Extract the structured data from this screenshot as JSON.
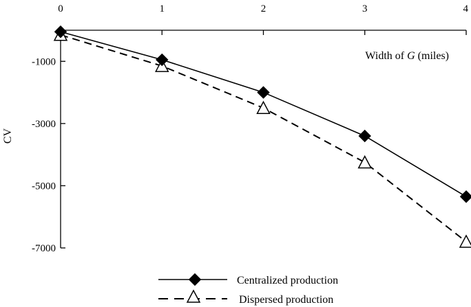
{
  "chart_data": {
    "type": "line",
    "xlabel_pre": "Width of ",
    "xlabel_var": "G",
    "xlabel_post": " (miles)",
    "ylabel": "CV",
    "x": [
      0,
      1,
      2,
      3,
      4
    ],
    "xlim": [
      0,
      4
    ],
    "ylim": [
      0,
      -7000
    ],
    "x_ticks": [
      "0",
      "1",
      "2",
      "3",
      "4"
    ],
    "y_ticks": [
      {
        "value": -1000,
        "label": "-1000"
      },
      {
        "value": -3000,
        "label": "-3000"
      },
      {
        "value": -5000,
        "label": "-5000"
      },
      {
        "value": -7000,
        "label": "-7000"
      }
    ],
    "grid": false,
    "legend_position": "bottom-center",
    "series": [
      {
        "name": "Centralized production",
        "values": [
          -50,
          -950,
          -2000,
          -3400,
          -5350
        ],
        "marker": "filled-diamond",
        "line_style": "solid",
        "color": "#000000"
      },
      {
        "name": "Dispersed production",
        "values": [
          -150,
          -1150,
          -2500,
          -4250,
          -6800
        ],
        "marker": "open-triangle",
        "line_style": "dashed",
        "color": "#000000"
      }
    ]
  }
}
